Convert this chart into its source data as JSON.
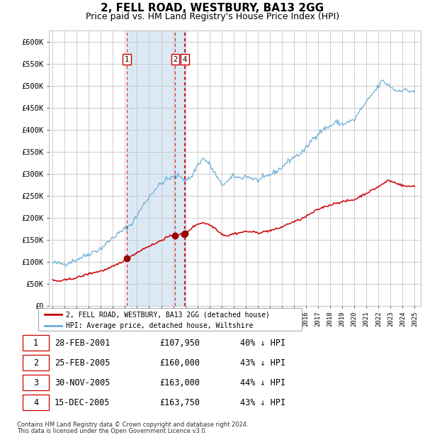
{
  "title": "2, FELL ROAD, WESTBURY, BA13 2GG",
  "subtitle": "Price paid vs. HM Land Registry's House Price Index (HPI)",
  "title_fontsize": 11,
  "subtitle_fontsize": 9,
  "ylabel_ticks": [
    "£0",
    "£50K",
    "£100K",
    "£150K",
    "£200K",
    "£250K",
    "£300K",
    "£350K",
    "£400K",
    "£450K",
    "£500K",
    "£550K",
    "£600K"
  ],
  "ylim": [
    0,
    625000
  ],
  "xlim_start": 1994.7,
  "xlim_end": 2025.5,
  "hpi_color": "#6baed6",
  "price_color": "#cc0000",
  "dot_color": "#990000",
  "shade_color": "#dce9f5",
  "vline_color": "#cc0000",
  "grid_color": "#bbbbbb",
  "background_color": "#ffffff",
  "legend_label_price": "2, FELL ROAD, WESTBURY, BA13 2GG (detached house)",
  "legend_label_hpi": "HPI: Average price, detached house, Wiltshire",
  "transactions": [
    {
      "id": 1,
      "date": "28-FEB-2001",
      "year": 2001.16,
      "price": 107950,
      "hpi_pct": "40% ↓ HPI"
    },
    {
      "id": 2,
      "date": "25-FEB-2005",
      "year": 2005.16,
      "price": 160000,
      "hpi_pct": "43% ↓ HPI"
    },
    {
      "id": 3,
      "date": "30-NOV-2005",
      "year": 2005.92,
      "price": 163000,
      "hpi_pct": "44% ↓ HPI"
    },
    {
      "id": 4,
      "date": "15-DEC-2005",
      "year": 2005.96,
      "price": 163750,
      "hpi_pct": "43% ↓ HPI"
    }
  ],
  "table_transactions": [
    {
      "id": 1,
      "date": "28-FEB-2001",
      "price_str": "£107,950",
      "hpi": "40% ↓ HPI"
    },
    {
      "id": 2,
      "date": "25-FEB-2005",
      "price_str": "£160,000",
      "hpi": "43% ↓ HPI"
    },
    {
      "id": 3,
      "date": "30-NOV-2005",
      "price_str": "£163,000",
      "hpi": "44% ↓ HPI"
    },
    {
      "id": 4,
      "date": "15-DEC-2005",
      "price_str": "£163,750",
      "hpi": "43% ↓ HPI"
    }
  ],
  "shade_start": 2001.16,
  "shade_end": 2005.96,
  "footnote1": "Contains HM Land Registry data © Crown copyright and database right 2024.",
  "footnote2": "This data is licensed under the Open Government Licence v3.0."
}
